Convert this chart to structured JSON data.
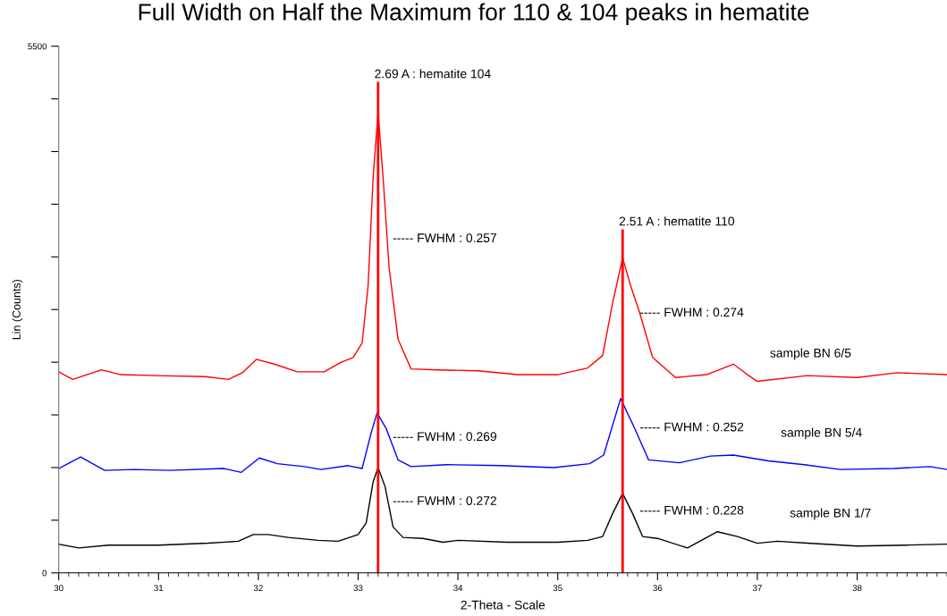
{
  "chart_data": {
    "type": "line",
    "title": "Full Width on Half the Maximum for 110 & 104 peaks in hematite",
    "xlabel": "2-Theta - Scale",
    "ylabel": "Lin (Counts)",
    "xlim": [
      30,
      38.9
    ],
    "ylim": [
      0,
      5500
    ],
    "xticks": [
      30,
      31,
      32,
      33,
      34,
      35,
      36,
      37,
      38
    ],
    "yticks": [
      0,
      {
        "value": 550,
        "label": null
      },
      {
        "value": 1100,
        "label": null
      },
      {
        "value": 1650,
        "label": null
      },
      {
        "value": 2200,
        "label": null
      },
      {
        "value": 2750,
        "label": null
      },
      {
        "value": 3300,
        "label": null
      },
      {
        "value": 3850,
        "label": null
      },
      {
        "value": 4400,
        "label": null
      },
      {
        "value": 4950,
        "label": null
      },
      5500
    ],
    "grid": false,
    "legend": false,
    "marker": "none",
    "line_style": "solid",
    "series": [
      {
        "name": "sample BN 6/5",
        "color": "#ff0000",
        "x": [
          30.0,
          30.14,
          30.43,
          30.62,
          30.98,
          31.47,
          31.7,
          31.84,
          31.98,
          32.16,
          32.39,
          32.66,
          32.83,
          32.95,
          33.04,
          33.1,
          33.15,
          33.2,
          33.25,
          33.31,
          33.4,
          33.53,
          33.8,
          34.2,
          34.6,
          35.0,
          35.3,
          35.45,
          35.55,
          35.65,
          35.73,
          35.82,
          35.95,
          36.18,
          36.49,
          36.76,
          36.9,
          37.0,
          37.5,
          38.0,
          38.4,
          38.9
        ],
        "values": [
          2100,
          2020,
          2120,
          2070,
          2060,
          2050,
          2020,
          2090,
          2230,
          2180,
          2100,
          2100,
          2200,
          2250,
          2400,
          3000,
          4130,
          4810,
          4130,
          3190,
          2440,
          2130,
          2120,
          2110,
          2070,
          2070,
          2140,
          2270,
          2820,
          3290,
          3000,
          2720,
          2250,
          2040,
          2070,
          2180,
          2070,
          2000,
          2060,
          2040,
          2090,
          2070
        ]
      },
      {
        "name": "sample BN 5/4",
        "color": "#0000ff",
        "x": [
          30.0,
          30.22,
          30.46,
          30.75,
          31.11,
          31.65,
          31.83,
          32.01,
          32.19,
          32.46,
          32.63,
          32.9,
          33.04,
          33.13,
          33.19,
          33.28,
          33.4,
          33.53,
          33.89,
          34.43,
          34.96,
          35.32,
          35.46,
          35.63,
          35.77,
          35.91,
          36.22,
          36.53,
          36.76,
          37.11,
          37.47,
          37.83,
          38.37,
          38.73,
          38.9
        ],
        "values": [
          1090,
          1210,
          1070,
          1080,
          1070,
          1090,
          1050,
          1200,
          1140,
          1110,
          1080,
          1120,
          1090,
          1460,
          1670,
          1510,
          1180,
          1110,
          1130,
          1120,
          1100,
          1140,
          1230,
          1820,
          1510,
          1180,
          1150,
          1220,
          1230,
          1170,
          1130,
          1080,
          1090,
          1110,
          1080
        ]
      },
      {
        "name": "sample BN 1/7",
        "color": "#000000",
        "x": [
          30.0,
          30.2,
          30.5,
          31.0,
          31.5,
          31.8,
          31.95,
          32.1,
          32.3,
          32.6,
          32.8,
          33.0,
          33.08,
          33.15,
          33.2,
          33.27,
          33.35,
          33.45,
          33.65,
          33.85,
          34.0,
          34.5,
          35.0,
          35.3,
          35.45,
          35.55,
          35.65,
          35.75,
          35.85,
          36.0,
          36.3,
          36.6,
          36.8,
          37.0,
          37.2,
          37.5,
          38.0,
          38.5,
          38.9
        ],
        "values": [
          300,
          260,
          290,
          290,
          310,
          330,
          400,
          400,
          370,
          340,
          330,
          400,
          520,
          950,
          1100,
          900,
          480,
          370,
          360,
          320,
          340,
          320,
          320,
          340,
          380,
          620,
          830,
          620,
          380,
          360,
          260,
          430,
          380,
          310,
          330,
          310,
          280,
          290,
          300
        ]
      }
    ],
    "ref_lines": [
      {
        "axis": "x",
        "value": 33.2,
        "label": "2.69 A : hematite 104",
        "color": "#ff0000",
        "line_style": "solid"
      },
      {
        "axis": "x",
        "value": 35.65,
        "label": "2.51 A : hematite 110",
        "color": "#ff0000",
        "line_style": "solid"
      }
    ],
    "annotations": [
      "----- FWHM : 0.257",
      "----- FWHM : 0.274",
      "----- FWHM : 0.269",
      "----- FWHM : 0.252",
      "----- FWHM : 0.272",
      "----- FWHM : 0.228"
    ]
  }
}
